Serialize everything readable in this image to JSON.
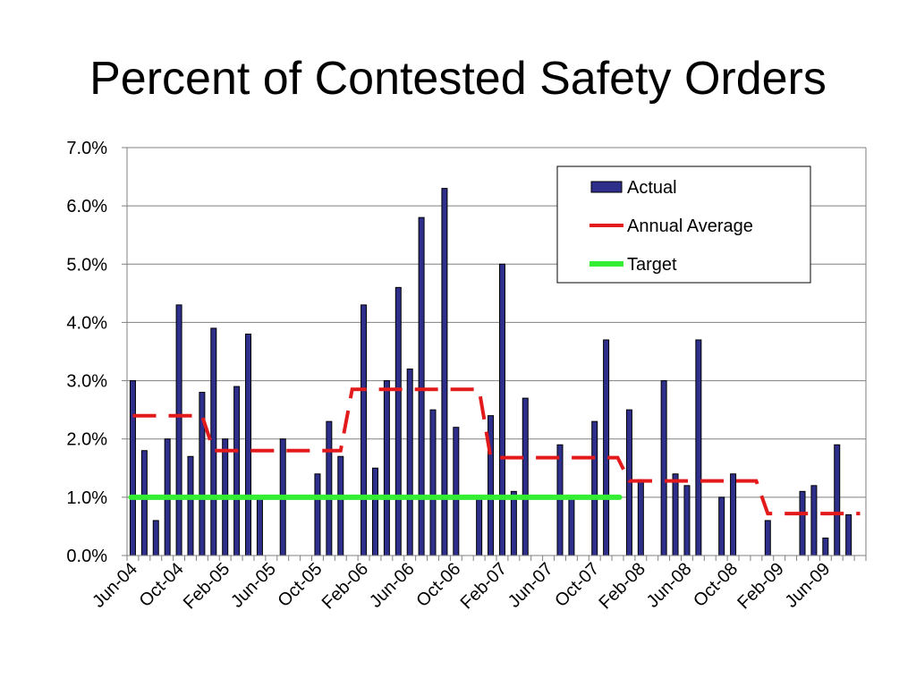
{
  "title": "Percent of Contested Safety Orders",
  "chart_data": {
    "type": "bar",
    "title": "Percent of Contested Safety Orders",
    "xlabel": "",
    "ylabel": "",
    "ylim": [
      0,
      0.07
    ],
    "y_ticks": [
      "0.0%",
      "1.0%",
      "2.0%",
      "3.0%",
      "4.0%",
      "5.0%",
      "6.0%",
      "7.0%"
    ],
    "y_tick_values": [
      0,
      0.01,
      0.02,
      0.03,
      0.04,
      0.05,
      0.06,
      0.07
    ],
    "x_tick_labels": [
      "Jun-04",
      "Oct-04",
      "Feb-05",
      "Jun-05",
      "Oct-05",
      "Feb-06",
      "Jun-06",
      "Oct-06",
      "Feb-07",
      "Jun-07",
      "Oct-07",
      "Feb-08",
      "Jun-08",
      "Oct-08",
      "Feb-09",
      "Jun-09"
    ],
    "categories": [
      "Jun-04",
      "Jul-04",
      "Aug-04",
      "Sep-04",
      "Oct-04",
      "Nov-04",
      "Dec-04",
      "Jan-05",
      "Feb-05",
      "Mar-05",
      "Apr-05",
      "May-05",
      "Jun-05",
      "Jul-05",
      "Aug-05",
      "Sep-05",
      "Oct-05",
      "Nov-05",
      "Dec-05",
      "Jan-06",
      "Feb-06",
      "Mar-06",
      "Apr-06",
      "May-06",
      "Jun-06",
      "Jul-06",
      "Aug-06",
      "Sep-06",
      "Oct-06",
      "Nov-06",
      "Dec-06",
      "Jan-07",
      "Feb-07",
      "Mar-07",
      "Apr-07",
      "May-07",
      "Jun-07",
      "Jul-07",
      "Aug-07",
      "Sep-07",
      "Oct-07",
      "Nov-07",
      "Dec-07",
      "Jan-08",
      "Feb-08",
      "Mar-08",
      "Apr-08",
      "May-08",
      "Jun-08",
      "Jul-08",
      "Aug-08",
      "Sep-08",
      "Oct-08",
      "Nov-08",
      "Dec-08",
      "Jan-09",
      "Feb-09",
      "Mar-09",
      "Apr-09",
      "May-09",
      "Jun-09",
      "Jul-09",
      "Aug-09",
      "Sep-09"
    ],
    "series": [
      {
        "name": "Actual",
        "type": "bar",
        "color": "#2E2E8B",
        "values": [
          0.03,
          0.018,
          0.006,
          0.02,
          0.043,
          0.017,
          0.028,
          0.039,
          0.02,
          0.029,
          0.038,
          0.01,
          0.0,
          0.02,
          0.0,
          0.0,
          0.014,
          0.023,
          0.017,
          0.0,
          0.043,
          0.015,
          0.03,
          0.046,
          0.032,
          0.058,
          0.025,
          0.063,
          0.022,
          0.0,
          0.01,
          0.024,
          0.05,
          0.011,
          0.027,
          0.0,
          0.0,
          0.019,
          0.01,
          0.0,
          0.023,
          0.037,
          0.0,
          0.025,
          0.013,
          0.0,
          0.03,
          0.014,
          0.012,
          0.037,
          0.0,
          0.01,
          0.014,
          0.0,
          0.0,
          0.006,
          0.0,
          0.0,
          0.011,
          0.012,
          0.003,
          0.019,
          0.007,
          0.0
        ]
      },
      {
        "name": "Annual Average",
        "type": "step-dashed",
        "color": "#E31A1C",
        "values": [
          0.024,
          0.024,
          0.024,
          0.024,
          0.024,
          0.024,
          0.024,
          0.018,
          0.018,
          0.018,
          0.018,
          0.018,
          0.018,
          0.018,
          0.018,
          0.018,
          0.018,
          0.018,
          0.018,
          0.0285,
          0.0285,
          0.0285,
          0.0285,
          0.0285,
          0.0285,
          0.0285,
          0.0285,
          0.0285,
          0.0285,
          0.0285,
          0.0285,
          0.0168,
          0.0168,
          0.0168,
          0.0168,
          0.0168,
          0.0168,
          0.0168,
          0.0168,
          0.0168,
          0.0168,
          0.0168,
          0.0168,
          0.0128,
          0.0128,
          0.0128,
          0.0128,
          0.0128,
          0.0128,
          0.0128,
          0.0128,
          0.0128,
          0.0128,
          0.0128,
          0.0128,
          0.0072,
          0.0072,
          0.0072,
          0.0072,
          0.0072,
          0.0072,
          0.0072,
          0.0072,
          0.0072
        ]
      },
      {
        "name": "Target",
        "type": "line",
        "color": "#33EE33",
        "value": 0.01,
        "x_range": [
          "Jun-04",
          "Dec-07"
        ]
      }
    ],
    "legend": {
      "position": "top-right",
      "items": [
        {
          "label": "Actual",
          "color": "#2E2E8B",
          "marker": "bar"
        },
        {
          "label": "Annual Average",
          "color": "#E31A1C",
          "marker": "dashed-line"
        },
        {
          "label": "Target",
          "color": "#33EE33",
          "marker": "line"
        }
      ]
    },
    "grid": true
  }
}
